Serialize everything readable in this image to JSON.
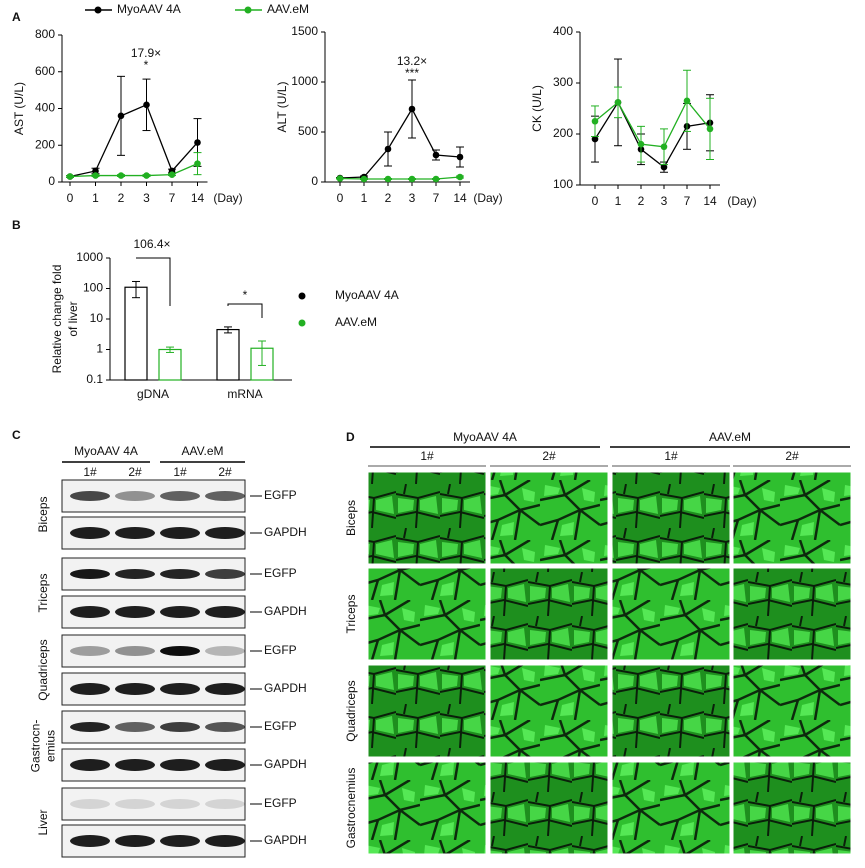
{
  "panels": [
    "A",
    "B",
    "C",
    "D"
  ],
  "chart_data": [
    {
      "type": "line",
      "ylabel": "AST (U/L)",
      "xlabel": "(Day)",
      "categories": [
        "0",
        "1",
        "2",
        "3",
        "7",
        "14"
      ],
      "ylim": [
        0,
        800
      ],
      "yticks": [
        0,
        200,
        400,
        600,
        800
      ],
      "annotations": [
        "17.9×",
        "*"
      ],
      "series": [
        {
          "name": "MyoAAV 4A",
          "color": "#000000",
          "values": [
            30,
            60,
            360,
            420,
            60,
            215
          ],
          "errors": [
            5,
            15,
            215,
            140,
            10,
            130
          ]
        },
        {
          "name": "AAV.eM",
          "color": "#22b022",
          "values": [
            30,
            35,
            35,
            35,
            40,
            100
          ],
          "errors": [
            5,
            5,
            5,
            5,
            5,
            60
          ]
        }
      ]
    },
    {
      "type": "line",
      "ylabel": "ALT (U/L)",
      "xlabel": "(Day)",
      "categories": [
        "0",
        "1",
        "2",
        "3",
        "7",
        "14"
      ],
      "ylim": [
        0,
        1500
      ],
      "yticks": [
        0,
        500,
        1000,
        1500
      ],
      "annotations": [
        "13.2×",
        "***"
      ],
      "series": [
        {
          "color": "#000000",
          "values": [
            40,
            50,
            330,
            730,
            270,
            250
          ],
          "errors": [
            5,
            10,
            170,
            290,
            50,
            100
          ]
        },
        {
          "color": "#22b022",
          "values": [
            35,
            30,
            30,
            30,
            30,
            50
          ],
          "errors": [
            5,
            5,
            5,
            5,
            5,
            10
          ]
        }
      ]
    },
    {
      "type": "line",
      "ylabel": "CK (U/L)",
      "xlabel": "(Day)",
      "categories": [
        "0",
        "1",
        "2",
        "3",
        "7",
        "14"
      ],
      "ylim": [
        100,
        400
      ],
      "yticks": [
        100,
        200,
        300,
        400
      ],
      "series": [
        {
          "color": "#000000",
          "values": [
            190,
            262,
            170,
            135,
            215,
            222
          ],
          "errors": [
            45,
            85,
            30,
            10,
            45,
            55
          ]
        },
        {
          "color": "#22b022",
          "values": [
            225,
            262,
            180,
            175,
            265,
            210
          ],
          "errors": [
            30,
            30,
            35,
            35,
            60,
            60
          ]
        }
      ]
    },
    {
      "type": "bar",
      "ylabel": [
        "Relative change fold",
        "of liver"
      ],
      "log": true,
      "categories": [
        "gDNA",
        "mRNA"
      ],
      "ylim": [
        0.1,
        1000
      ],
      "yticks": [
        0.1,
        1,
        10,
        100,
        1000
      ],
      "annotations": [
        "106.4×",
        "*"
      ],
      "series": [
        {
          "name": "MyoAAV 4A",
          "color": "#000000",
          "values": [
            110,
            4.5
          ],
          "errors": [
            60,
            1
          ]
        },
        {
          "name": "AAV.eM",
          "color": "#22b022",
          "values": [
            1,
            1.1
          ],
          "errors": [
            0.2,
            0.8
          ]
        }
      ]
    }
  ],
  "blot": {
    "groups": [
      "MyoAAV 4A",
      "AAV.eM"
    ],
    "lanes": [
      "1#",
      "2#",
      "1#",
      "2#"
    ],
    "tissues": [
      [
        "Biceps"
      ],
      [
        "Triceps"
      ],
      [
        "Quadriceps"
      ],
      [
        "Gastrocn-",
        "emius"
      ],
      [
        "Liver"
      ]
    ],
    "bands": [
      "EGFP",
      "GAPDH"
    ]
  },
  "images": {
    "groups": [
      "MyoAAV 4A",
      "AAV.eM"
    ],
    "columns": [
      "1#",
      "2#",
      "1#",
      "2#"
    ],
    "rows": [
      "Biceps",
      "Triceps",
      "Quadriceps",
      "Gastrocnemius"
    ]
  }
}
